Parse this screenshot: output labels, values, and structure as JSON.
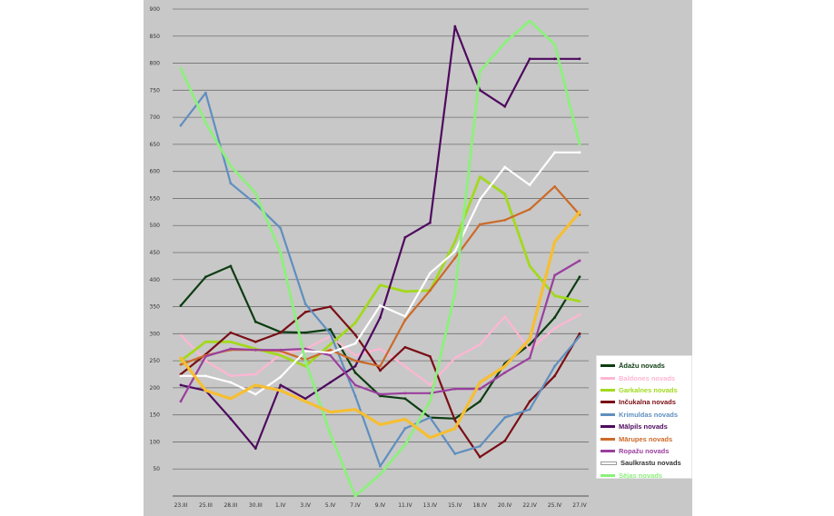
{
  "chart_data": {
    "type": "line",
    "title": "",
    "xlabel": "",
    "ylabel": "",
    "ylim": [
      0,
      900
    ],
    "yticks": [
      50,
      100,
      150,
      200,
      250,
      300,
      350,
      400,
      450,
      500,
      550,
      600,
      650,
      700,
      750,
      800,
      850,
      900
    ],
    "grid": true,
    "legend": "bottom-right",
    "categories": [
      "23.III",
      "25.III",
      "28.III",
      "30.III",
      "1.IV",
      "3.IV",
      "5.IV",
      "7.IV",
      "9.IV",
      "11.IV",
      "13.IV",
      "15.IV",
      "18.IV",
      "20.IV",
      "22.IV",
      "25.IV",
      "27.IV"
    ],
    "series": [
      {
        "name": "Ādažu novads",
        "color": "#0d3d12",
        "width": 2.2,
        "values": [
          352,
          405,
          425,
          322,
          303,
          302,
          308,
          228,
          185,
          180,
          145,
          143,
          175,
          245,
          280,
          330,
          405
        ]
      },
      {
        "name": "Baldones novads",
        "color": "#ffb6d2",
        "width": 2.2,
        "values": [
          297,
          250,
          222,
          225,
          262,
          272,
          295,
          260,
          272,
          240,
          205,
          255,
          280,
          332,
          270,
          310,
          335
        ]
      },
      {
        "name": "Garkalnes novads",
        "color": "#a2d91e",
        "width": 2.8,
        "values": [
          250,
          285,
          285,
          272,
          260,
          240,
          280,
          320,
          390,
          378,
          380,
          470,
          590,
          558,
          425,
          370,
          360
        ]
      },
      {
        "name": "Inčukalna novads",
        "color": "#7a0f15",
        "width": 2.2,
        "values": [
          225,
          262,
          302,
          285,
          302,
          340,
          350,
          298,
          232,
          275,
          258,
          140,
          72,
          102,
          175,
          222,
          300
        ]
      },
      {
        "name": "Krimuldas novads",
        "color": "#5f8fbf",
        "width": 2.2,
        "values": [
          685,
          745,
          578,
          540,
          495,
          355,
          300,
          185,
          55,
          125,
          145,
          78,
          92,
          145,
          160,
          240,
          295
        ]
      },
      {
        "name": "Mālpils novads",
        "color": "#4e0a5e",
        "width": 2.2,
        "values": [
          205,
          195,
          143,
          88,
          205,
          180,
          210,
          240,
          330,
          478,
          505,
          868,
          750,
          720,
          808,
          808,
          808
        ]
      },
      {
        "name": "Mārupes novads",
        "color": "#cc6a28",
        "width": 2.2,
        "values": [
          243,
          260,
          270,
          270,
          268,
          252,
          270,
          250,
          240,
          325,
          380,
          440,
          502,
          510,
          530,
          572,
          520
        ]
      },
      {
        "name": "Ropažu novads",
        "color": "#9a3f9e",
        "width": 2.2,
        "values": [
          175,
          258,
          272,
          270,
          270,
          272,
          260,
          205,
          188,
          190,
          190,
          198,
          198,
          228,
          255,
          408,
          435
        ]
      },
      {
        "name": "Saulkrastu novads",
        "color": "#ffffff",
        "width": 2.2,
        "legend_outline": true,
        "values": [
          222,
          222,
          210,
          188,
          220,
          268,
          265,
          282,
          352,
          332,
          412,
          452,
          548,
          608,
          575,
          635,
          635
        ]
      },
      {
        "name": "Sējas novads",
        "color": "#8cf07c",
        "width": 2.8,
        "values": [
          790,
          690,
          610,
          560,
          450,
          250,
          115,
          0,
          40,
          95,
          175,
          375,
          785,
          838,
          878,
          835,
          650
        ]
      },
      {
        "name": "",
        "color": "#f6be32",
        "width": 3.2,
        "legend_hidden": true,
        "values": [
          255,
          195,
          180,
          205,
          195,
          175,
          155,
          160,
          132,
          142,
          108,
          125,
          210,
          240,
          290,
          470,
          525
        ]
      }
    ]
  }
}
